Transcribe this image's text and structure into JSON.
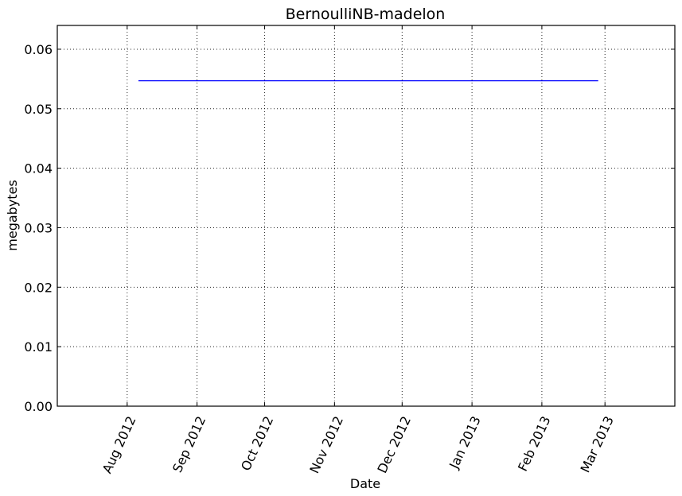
{
  "chart_data": {
    "type": "line",
    "title": "BernoulliNB-madelon",
    "xlabel": "Date",
    "ylabel": "megabytes",
    "x_axis_type": "date",
    "xlim": [
      "2012-07-01",
      "2013-04-01"
    ],
    "ylim": [
      0,
      0.064
    ],
    "grid": true,
    "legend": "none",
    "x_ticks": [
      {
        "date": "2012-08-01",
        "label": "Aug 2012"
      },
      {
        "date": "2012-09-01",
        "label": "Sep 2012"
      },
      {
        "date": "2012-10-01",
        "label": "Oct 2012"
      },
      {
        "date": "2012-11-01",
        "label": "Nov 2012"
      },
      {
        "date": "2012-12-01",
        "label": "Dec 2012"
      },
      {
        "date": "2013-01-01",
        "label": "Jan 2013"
      },
      {
        "date": "2013-02-01",
        "label": "Feb 2013"
      },
      {
        "date": "2013-03-01",
        "label": "Mar 2013"
      }
    ],
    "y_ticks": [
      {
        "value": 0.0,
        "label": "0.00"
      },
      {
        "value": 0.01,
        "label": "0.01"
      },
      {
        "value": 0.02,
        "label": "0.02"
      },
      {
        "value": 0.03,
        "label": "0.03"
      },
      {
        "value": 0.04,
        "label": "0.04"
      },
      {
        "value": 0.05,
        "label": "0.05"
      },
      {
        "value": 0.06,
        "label": "0.06"
      }
    ],
    "series": [
      {
        "color": "#0000ff",
        "points": [
          {
            "x": "2012-08-06",
            "y": 0.0547
          },
          {
            "x": "2013-02-26",
            "y": 0.0547
          }
        ]
      }
    ]
  }
}
